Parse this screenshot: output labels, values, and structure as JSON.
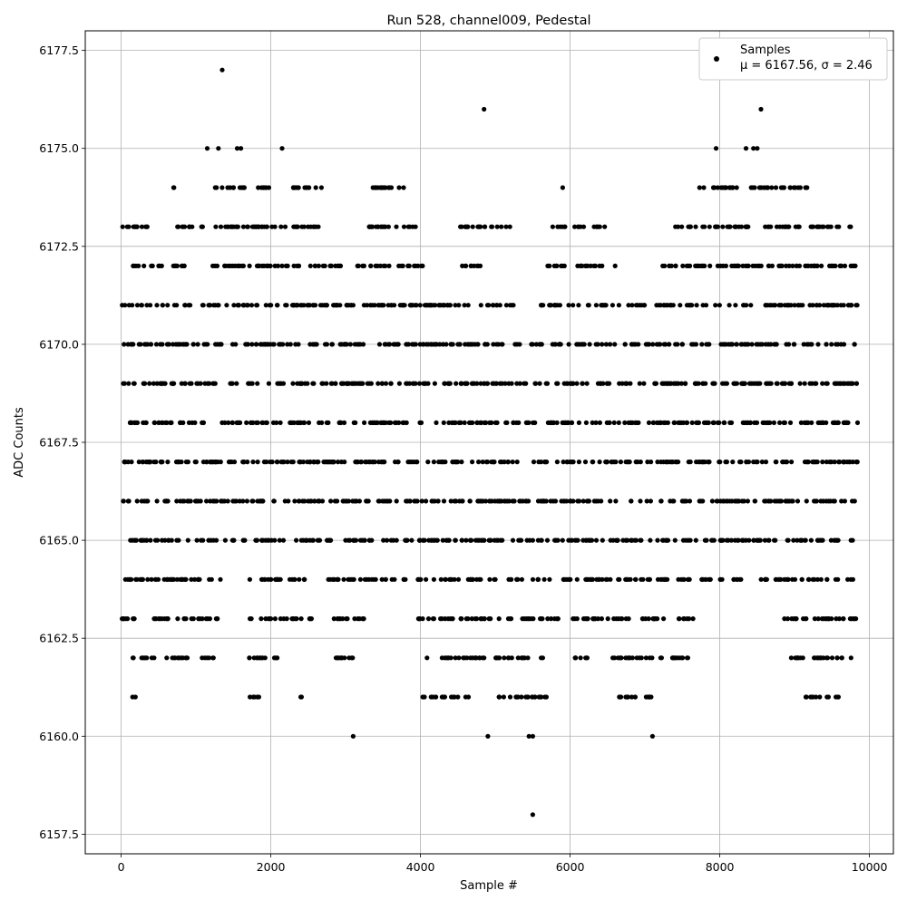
{
  "chart_data": {
    "type": "scatter",
    "title": "Run 528, channel009, Pedestal",
    "xlabel": "Sample #",
    "ylabel": "ADC Counts",
    "xlim": [
      -480,
      10320
    ],
    "ylim": [
      6157.0,
      6178.0
    ],
    "x_ticks": [
      0,
      2000,
      4000,
      6000,
      8000,
      10000
    ],
    "x_tick_labels": [
      "0",
      "2000",
      "4000",
      "6000",
      "8000",
      "10000"
    ],
    "y_ticks": [
      6157.5,
      6160.0,
      6162.5,
      6165.0,
      6167.5,
      6170.0,
      6172.5,
      6175.0,
      6177.5
    ],
    "y_tick_labels": [
      "6157.5",
      "6160.0",
      "6162.5",
      "6165.0",
      "6167.5",
      "6170.0",
      "6172.5",
      "6175.0",
      "6177.5"
    ],
    "grid": true,
    "legend_position": "top-right",
    "marker_color": "#000000",
    "series": [
      {
        "name": "Samples",
        "label_line2": "μ = 6167.56, σ = 2.46",
        "bands": [
          {
            "y": 6169,
            "x_segments": [
              [
                0,
                5450
              ],
              [
                5500,
                9850
              ]
            ]
          },
          {
            "y": 6168,
            "x_segments": [
              [
                0,
                5450
              ],
              [
                5500,
                9850
              ]
            ]
          },
          {
            "y": 6167,
            "x_segments": [
              [
                0,
                9850
              ]
            ]
          },
          {
            "y": 6166,
            "x_segments": [
              [
                0,
                5500
              ],
              [
                5550,
                8400
              ],
              [
                8450,
                9850
              ]
            ]
          },
          {
            "y": 6170,
            "x_segments": [
              [
                0,
                5350
              ],
              [
                5450,
                9850
              ]
            ]
          },
          {
            "y": 6165,
            "x_segments": [
              [
                0,
                1300
              ],
              [
                1350,
                9850
              ]
            ]
          },
          {
            "y": 6171,
            "x_segments": [
              [
                0,
                5250
              ],
              [
                5600,
                9850
              ]
            ]
          },
          {
            "y": 6164,
            "x_segments": [
              [
                0,
                1350
              ],
              [
                1700,
                2500
              ],
              [
                2700,
                3800
              ],
              [
                3900,
                7300
              ],
              [
                7400,
                7600
              ],
              [
                7750,
                8300
              ],
              [
                8550,
                9850
              ]
            ]
          },
          {
            "y": 6163,
            "x_segments": [
              [
                0,
                1300
              ],
              [
                1700,
                2550
              ],
              [
                2800,
                3300
              ],
              [
                3950,
                5850
              ],
              [
                6000,
                7250
              ],
              [
                7450,
                7650
              ],
              [
                8850,
                9850
              ]
            ]
          },
          {
            "y": 6172,
            "x_segments": [
              [
                150,
                850
              ],
              [
                1200,
                2400
              ],
              [
                2500,
                3000
              ],
              [
                3150,
                4150
              ],
              [
                4550,
                4800
              ],
              [
                5700,
                6650
              ],
              [
                7200,
                9850
              ]
            ]
          },
          {
            "y": 6162,
            "x_segments": [
              [
                150,
                1250
              ],
              [
                1700,
                2100
              ],
              [
                2800,
                3100
              ],
              [
                4050,
                4850
              ],
              [
                4950,
                5650
              ],
              [
                6050,
                6250
              ],
              [
                6550,
                7650
              ],
              [
                8900,
                9800
              ]
            ]
          },
          {
            "y": 6173,
            "x_segments": [
              [
                0,
                350
              ],
              [
                750,
                1100
              ],
              [
                1200,
                2700
              ],
              [
                3250,
                3950
              ],
              [
                4500,
                5200
              ],
              [
                5750,
                6550
              ],
              [
                7400,
                9850
              ]
            ]
          },
          {
            "y": 6161,
            "x_segments": [
              [
                150,
                200
              ],
              [
                1700,
                1850
              ],
              [
                2400,
                2450
              ],
              [
                4000,
                4700
              ],
              [
                5050,
                5700
              ],
              [
                6550,
                7100
              ],
              [
                9150,
                9600
              ]
            ]
          },
          {
            "y": 6174,
            "x_segments": [
              [
                700,
                750
              ],
              [
                1200,
                1650
              ],
              [
                1800,
                2000
              ],
              [
                2300,
                2700
              ],
              [
                3300,
                3850
              ],
              [
                7700,
                9200
              ]
            ]
          }
        ],
        "points": [
          {
            "x": 1350,
            "y": 6177
          },
          {
            "x": 4850,
            "y": 6176
          },
          {
            "x": 8550,
            "y": 6176
          },
          {
            "x": 1150,
            "y": 6175
          },
          {
            "x": 1300,
            "y": 6175
          },
          {
            "x": 1550,
            "y": 6175
          },
          {
            "x": 1600,
            "y": 6175
          },
          {
            "x": 2150,
            "y": 6175
          },
          {
            "x": 7950,
            "y": 6175
          },
          {
            "x": 8350,
            "y": 6175
          },
          {
            "x": 8450,
            "y": 6175
          },
          {
            "x": 8500,
            "y": 6175
          },
          {
            "x": 5900,
            "y": 6174
          },
          {
            "x": 3100,
            "y": 6160
          },
          {
            "x": 4900,
            "y": 6160
          },
          {
            "x": 5450,
            "y": 6160
          },
          {
            "x": 5500,
            "y": 6160
          },
          {
            "x": 7100,
            "y": 6160
          },
          {
            "x": 5500,
            "y": 6158
          }
        ]
      }
    ]
  }
}
